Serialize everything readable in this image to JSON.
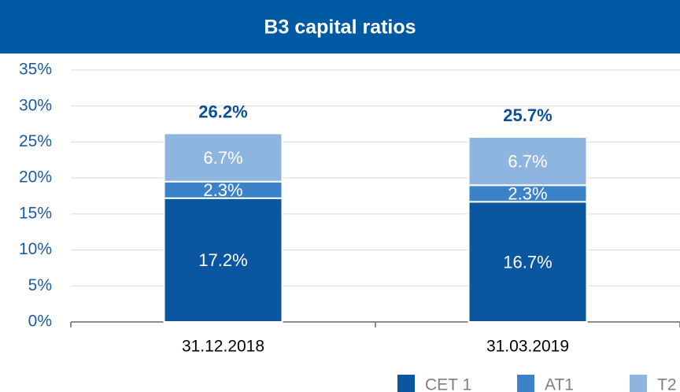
{
  "chart_data": {
    "type": "stacked_bar",
    "title": "B3 capital ratios",
    "categories": [
      "31.12.2018",
      "31.03.2019"
    ],
    "series": [
      {
        "name": "CET 1",
        "color": "#0a56a0",
        "values": [
          17.2,
          16.7
        ],
        "value_labels": [
          "17.2%",
          "16.7%"
        ]
      },
      {
        "name": "AT1",
        "color": "#3b82c8",
        "values": [
          2.3,
          2.3
        ],
        "value_labels": [
          "2.3%",
          "2.3%"
        ]
      },
      {
        "name": "T2",
        "color": "#8eb4e0",
        "values": [
          6.7,
          6.7
        ],
        "value_labels": [
          "6.7%",
          "6.7%"
        ]
      }
    ],
    "totals": [
      26.2,
      25.7
    ],
    "totals_labels": [
      "26.2%",
      "25.7%"
    ],
    "ylim": [
      0,
      35
    ],
    "yticks": [
      {
        "value": 0,
        "label": "0%"
      },
      {
        "value": 5,
        "label": "5%"
      },
      {
        "value": 10,
        "label": "10%"
      },
      {
        "value": 15,
        "label": "15%"
      },
      {
        "value": 20,
        "label": "20%"
      },
      {
        "value": 25,
        "label": "25%"
      },
      {
        "value": 30,
        "label": "30%"
      },
      {
        "value": 35,
        "label": "35%"
      }
    ],
    "grid": true
  }
}
